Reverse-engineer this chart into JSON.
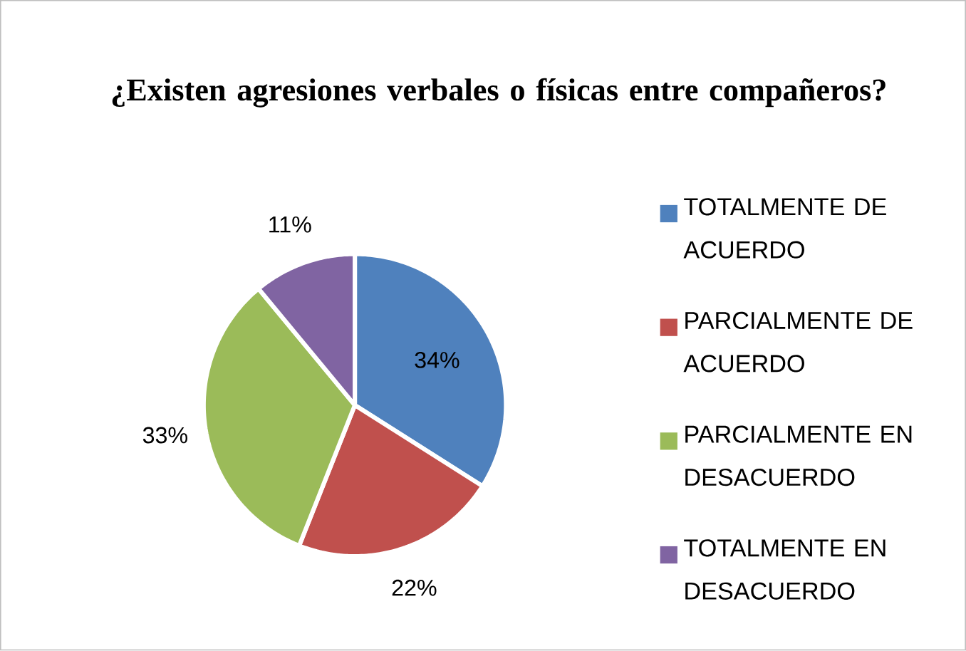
{
  "chart_data": {
    "type": "pie",
    "title": "¿Existen agresiones verbales o físicas entre compañeros?",
    "categories": [
      "TOTALMENTE DE ACUERDO",
      "PARCIALMENTE DE ACUERDO",
      "PARCIALMENTE EN DESACUERDO",
      "TOTALMENTE EN DESACUERDO"
    ],
    "values": [
      34,
      22,
      33,
      11
    ],
    "value_labels": [
      "34%",
      "22%",
      "33%",
      "11%"
    ],
    "colors": [
      "#4f81bd",
      "#c0504d",
      "#9bbb59",
      "#8064a2"
    ],
    "legend": "right"
  }
}
